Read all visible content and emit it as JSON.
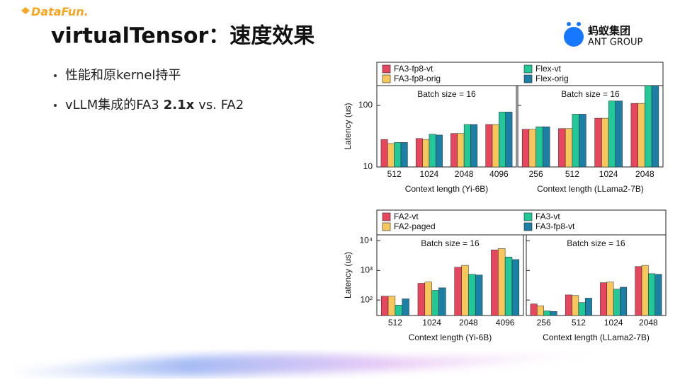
{
  "header": {
    "logo": "DataFun.",
    "title": "virtualTensor：速度效果",
    "brand": "蚂蚁集团",
    "brand_sub": "ANT GROUP"
  },
  "bullets": [
    {
      "parts": [
        "性能和原kernel持平"
      ]
    },
    {
      "parts": [
        "vLLM集成的FA3",
        "2.1x",
        "vs. FA2"
      ]
    }
  ],
  "chart_data": [
    {
      "type": "bar",
      "log_scale": true,
      "ylabel": "Latency (us)",
      "ylim": [
        10,
        210
      ],
      "yticks": [
        10,
        100
      ],
      "series": [
        {
          "name": "FA3-fp8-vt",
          "color": "#e6475e"
        },
        {
          "name": "FA3-fp8-orig",
          "color": "#f7c75c"
        },
        {
          "name": "Flex-vt",
          "color": "#20c997"
        },
        {
          "name": "Flex-orig",
          "color": "#1b7fa6"
        }
      ],
      "panels": [
        {
          "title": "Batch size = 16",
          "xlabel": "Context length (Yi-6B)",
          "categories": [
            "512",
            "1024",
            "2048",
            "4096"
          ],
          "values": [
            [
              28,
              29,
              35,
              49
            ],
            [
              24,
              28,
              35,
              49
            ],
            [
              25,
              34,
              49,
              78
            ],
            [
              25,
              33,
              49,
              78
            ]
          ]
        },
        {
          "title": "Batch size = 16",
          "xlabel": "Context length (LLama2-7B)",
          "categories": [
            "256",
            "512",
            "1024",
            "2048"
          ],
          "values": [
            [
              41,
              42,
              62,
              108
            ],
            [
              41,
              42,
              62,
              108
            ],
            [
              45,
              72,
              118,
              210
            ],
            [
              45,
              72,
              118,
              210
            ]
          ]
        }
      ]
    },
    {
      "type": "bar",
      "log_scale": true,
      "ylabel": "Latency (us)",
      "ylim": [
        30,
        16000
      ],
      "yticks": [
        {
          "value": 100,
          "label": "10²"
        },
        {
          "value": 1000,
          "label": "10³"
        },
        {
          "value": 10000,
          "label": "10⁴"
        }
      ],
      "series": [
        {
          "name": "FA2-vt",
          "color": "#e6475e"
        },
        {
          "name": "FA2-paged",
          "color": "#f7c75c"
        },
        {
          "name": "FA3-vt",
          "color": "#20c997"
        },
        {
          "name": "FA3-fp8-vt",
          "color": "#1b7fa6"
        }
      ],
      "panels": [
        {
          "title": "Batch size = 16",
          "xlabel": "Context length (Yi-6B)",
          "categories": [
            "512",
            "1024",
            "2048",
            "4096"
          ],
          "values": [
            [
              135,
              367,
              1290,
              4970
            ],
            [
              135,
              407,
              1490,
              5500
            ],
            [
              67,
              212,
              741,
              2860
            ],
            [
              110,
              259,
              700,
              2340
            ]
          ]
        },
        {
          "title": "Batch size = 16",
          "xlabel": "Context length (LLama2-7B)",
          "categories": [
            "256",
            "512",
            "1024",
            "2048"
          ],
          "values": [
            [
              74,
              149,
              387,
              1360
            ],
            [
              64,
              142,
              407,
              1490
            ],
            [
              43,
              82,
              234,
              778
            ],
            [
              41,
              116,
              272,
              741
            ]
          ]
        }
      ]
    }
  ]
}
